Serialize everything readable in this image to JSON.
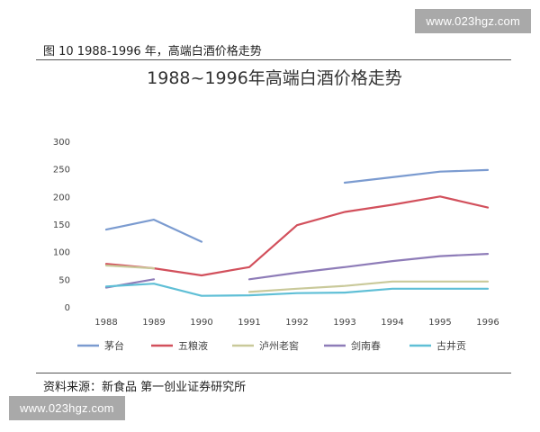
{
  "watermark": {
    "text": "www.023hgz.com"
  },
  "caption": "图 10   1988-1996 年，高端白酒价格走势",
  "source": "资料来源：新食品   第一创业证券研究所",
  "chart_data": {
    "type": "line",
    "title": "1988~1996年高端白酒价格走势",
    "x": [
      "1988",
      "1989",
      "1990",
      "1991",
      "1992",
      "1993",
      "1994",
      "1995",
      "1996"
    ],
    "ylim": [
      0,
      300
    ],
    "yticks": [
      "0",
      "50",
      "100",
      "150",
      "200",
      "250",
      "300"
    ],
    "grid": false,
    "legend_position": "bottom",
    "series": [
      {
        "name": "茅台",
        "color": "#7b9bd0",
        "values": [
          140,
          158,
          118,
          null,
          null,
          225,
          235,
          245,
          248
        ]
      },
      {
        "name": "五粮液",
        "color": "#d2505c",
        "values": [
          78,
          70,
          57,
          72,
          148,
          172,
          185,
          200,
          180
        ]
      },
      {
        "name": "泸州老窖",
        "color": "#c9c99a",
        "values": [
          75,
          70,
          null,
          27,
          33,
          38,
          46,
          46,
          46
        ]
      },
      {
        "name": "剑南春",
        "color": "#8e7cb8",
        "values": [
          35,
          50,
          null,
          50,
          62,
          72,
          83,
          92,
          96
        ]
      },
      {
        "name": "古井贡",
        "color": "#5fbfd6",
        "values": [
          37,
          42,
          20,
          21,
          25,
          26,
          33,
          33,
          33
        ]
      }
    ]
  }
}
